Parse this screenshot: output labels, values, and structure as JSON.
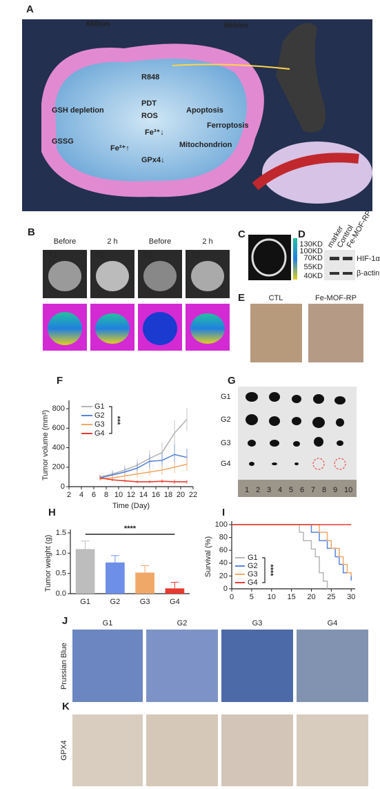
{
  "panel_labels": [
    "A",
    "B",
    "C",
    "D",
    "E",
    "F",
    "G",
    "H",
    "I",
    "J",
    "K"
  ],
  "panel_a": {
    "labels": [
      "660nm",
      "660nm",
      "R848",
      "PDT",
      "Apoptosis",
      "Ferroptosis",
      "GSH depletion",
      "GSSG",
      "ROS",
      "Fe³⁺↓",
      "Fe²⁺↑",
      "GPx4↓",
      "Mitochondrion"
    ]
  },
  "panel_b": {
    "columns": [
      "Before",
      "2 h",
      "Before",
      "2 h"
    ],
    "sequences": [
      "T1",
      "T1",
      "T2",
      "T2"
    ]
  },
  "panel_d": {
    "markers": [
      "130KD",
      "100KD",
      "70KD",
      "55KD",
      "40KD"
    ],
    "lanes": [
      "marker",
      "Control",
      "Fe-MOF-RP"
    ],
    "proteins": [
      "HIF-1α",
      "β-actin"
    ]
  },
  "panel_e": {
    "groups": [
      "CTL",
      "Fe-MOF-RP"
    ]
  },
  "panel_g": {
    "groups": [
      "G1",
      "G2",
      "G3",
      "G4"
    ],
    "ruler": [
      "1",
      "2",
      "3",
      "4",
      "5",
      "6",
      "7",
      "8",
      "9",
      "10"
    ]
  },
  "panel_j": {
    "stain": "Prussian Blue",
    "groups": [
      "G1",
      "G2",
      "G3",
      "G4"
    ]
  },
  "panel_k": {
    "stain": "GPX4"
  },
  "chart_data": [
    {
      "type": "line",
      "x_label": "Time (Day)",
      "y_label": "Tumor volume (mm³)",
      "x": [
        7,
        9,
        11,
        13,
        15,
        17,
        19,
        21
      ],
      "series": [
        {
          "name": "G1",
          "color": "#b5b5b5",
          "values": [
            100,
            130,
            170,
            220,
            290,
            350,
            550,
            690
          ],
          "errors": [
            30,
            40,
            50,
            60,
            80,
            100,
            130,
            120
          ]
        },
        {
          "name": "G2",
          "color": "#5b83d9",
          "values": [
            90,
            120,
            150,
            190,
            260,
            270,
            330,
            300
          ],
          "errors": [
            25,
            35,
            45,
            55,
            70,
            80,
            100,
            90
          ]
        },
        {
          "name": "G3",
          "color": "#f0a868",
          "values": [
            80,
            90,
            110,
            130,
            150,
            170,
            200,
            230
          ],
          "errors": [
            20,
            25,
            30,
            35,
            40,
            50,
            60,
            70
          ]
        },
        {
          "name": "G4",
          "color": "#e63a2e",
          "values": [
            90,
            70,
            60,
            50,
            50,
            55,
            50,
            50
          ],
          "errors": [
            20,
            15,
            15,
            15,
            15,
            20,
            20,
            20
          ]
        }
      ],
      "xlim": [
        2,
        22
      ],
      "xticks": [
        2,
        4,
        6,
        8,
        10,
        12,
        14,
        16,
        18,
        20,
        22
      ],
      "ylim": [
        0,
        850
      ],
      "yticks": [
        0,
        200,
        400,
        600,
        800
      ],
      "annotation": "***"
    },
    {
      "type": "bar",
      "y_label": "Tumor weight (g)",
      "categories": [
        "G1",
        "G2",
        "G3",
        "G4"
      ],
      "values": [
        1.1,
        0.77,
        0.52,
        0.13
      ],
      "errors": [
        0.2,
        0.17,
        0.17,
        0.15
      ],
      "colors": [
        "#bdbdbd",
        "#6d8fe8",
        "#f0a868",
        "#e63a2e"
      ],
      "ylim": [
        0,
        1.5
      ],
      "yticks": [
        {
          "value": 0,
          "label": "0.0"
        },
        0.5,
        {
          "value": 1,
          "label": "1.0"
        },
        1.5
      ],
      "annotation": "****"
    },
    {
      "type": "step",
      "y_label": "Survival (%)",
      "series": [
        {
          "name": "G1",
          "color": "#b5b5b5",
          "x": [
            0,
            17,
            18,
            20,
            21,
            22,
            23,
            24
          ],
          "values": [
            100,
            88,
            75,
            62,
            50,
            25,
            12,
            0
          ]
        },
        {
          "name": "G2",
          "color": "#5b83d9",
          "x": [
            0,
            20,
            22,
            24,
            26,
            27,
            28,
            29,
            30
          ],
          "values": [
            100,
            88,
            75,
            63,
            50,
            38,
            25,
            25,
            13
          ]
        },
        {
          "name": "G3",
          "color": "#f0a868",
          "x": [
            0,
            22,
            24,
            25,
            27,
            28,
            29,
            30
          ],
          "values": [
            100,
            88,
            75,
            63,
            50,
            38,
            25,
            20
          ]
        },
        {
          "name": "G4",
          "color": "#e63a2e",
          "x": [
            0,
            30
          ],
          "values": [
            100,
            100
          ]
        }
      ],
      "xlim": [
        0,
        31
      ],
      "xticks": [
        0,
        5,
        10,
        15,
        20,
        25,
        30
      ],
      "ylim": [
        0,
        100
      ],
      "yticks": [
        0,
        20,
        40,
        60,
        80,
        100
      ],
      "annotation": "****"
    }
  ]
}
